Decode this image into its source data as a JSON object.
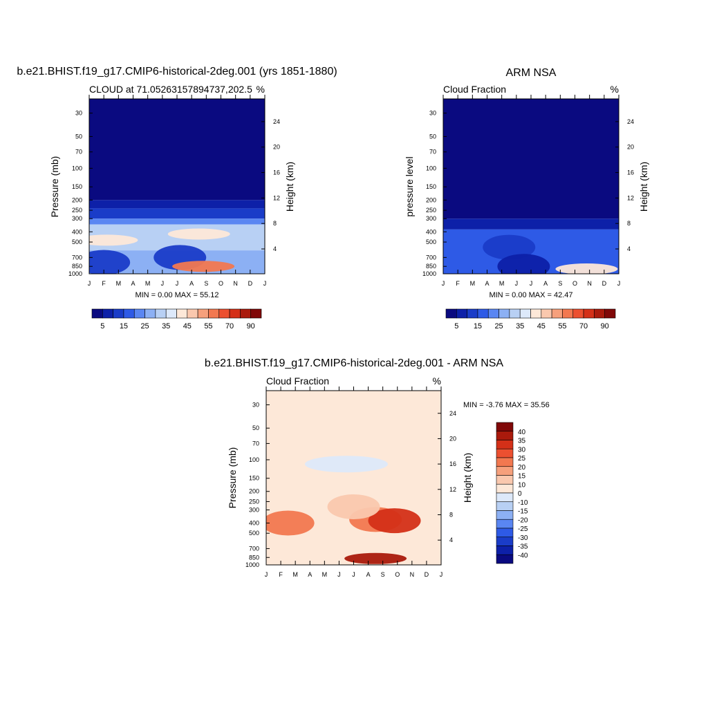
{
  "chart_data": [
    {
      "type": "contour",
      "id": "model",
      "title": "b.e21.BHIST.f19_g17.CMIP6-historical-2deg.001 (yrs 1851-1880)",
      "left_label": "CLOUD at 71.05263157894737,202.5",
      "right_label": "%",
      "xlabel": "",
      "ylabel": "Pressure (mb)",
      "y2label": "Height (km)",
      "x_ticks": [
        "J",
        "F",
        "M",
        "A",
        "M",
        "J",
        "J",
        "A",
        "S",
        "O",
        "N",
        "D",
        "J"
      ],
      "y_ticks": [
        "30",
        "50",
        "70",
        "100",
        "150",
        "200",
        "250",
        "300",
        "400",
        "500",
        "700",
        "850",
        "1000"
      ],
      "y_tick_values": [
        30,
        50,
        70,
        100,
        150,
        200,
        250,
        300,
        400,
        500,
        700,
        850,
        1000
      ],
      "height_ticks": [
        "24",
        "20",
        "16",
        "12",
        "8",
        "4"
      ],
      "height_tick_values": [
        24,
        20,
        16,
        12,
        8,
        4
      ],
      "ylim": [
        1000,
        22
      ],
      "stats": "MIN =   0.00 MAX =  55.12",
      "bands_top_to_bottom": [
        {
          "from_hPa": 22,
          "to_hPa": 200,
          "value": 2
        },
        {
          "from_hPa": 200,
          "to_hPa": 240,
          "value": 7
        },
        {
          "from_hPa": 240,
          "to_hPa": 300,
          "value": 12
        },
        {
          "from_hPa": 300,
          "to_hPa": 340,
          "value": 22
        },
        {
          "from_hPa": 340,
          "to_hPa": 600,
          "value": 32
        },
        {
          "from_hPa": 600,
          "to_hPa": 1000,
          "value": 27
        }
      ],
      "features": [
        {
          "month": 1.2,
          "hPa": 480,
          "value": 40
        },
        {
          "month": 7.5,
          "hPa": 420,
          "value": 40
        },
        {
          "month": 6.2,
          "hPa": 700,
          "value": 12
        },
        {
          "month": 1.0,
          "hPa": 780,
          "value": 12
        },
        {
          "month": 7.8,
          "hPa": 850,
          "value": 55
        }
      ]
    },
    {
      "type": "contour",
      "id": "obs",
      "title": "ARM NSA",
      "left_label": "Cloud Fraction",
      "right_label": "%",
      "ylabel": "pressure level",
      "y2label": "Height (km)",
      "x_ticks": [
        "J",
        "F",
        "M",
        "A",
        "M",
        "J",
        "J",
        "A",
        "S",
        "O",
        "N",
        "D",
        "J"
      ],
      "y_ticks": [
        "30",
        "50",
        "70",
        "100",
        "150",
        "200",
        "250",
        "300",
        "400",
        "500",
        "700",
        "850",
        "1000"
      ],
      "y_tick_values": [
        30,
        50,
        70,
        100,
        150,
        200,
        250,
        300,
        400,
        500,
        700,
        850,
        1000
      ],
      "height_ticks": [
        "24",
        "20",
        "16",
        "12",
        "8",
        "4"
      ],
      "height_tick_values": [
        24,
        20,
        16,
        12,
        8,
        4
      ],
      "ylim": [
        1000,
        22
      ],
      "stats": "MIN =   0.00 MAX =  42.47",
      "bands_top_to_bottom": [
        {
          "from_hPa": 22,
          "to_hPa": 300,
          "value": 2
        },
        {
          "from_hPa": 300,
          "to_hPa": 380,
          "value": 7
        },
        {
          "from_hPa": 380,
          "to_hPa": 1000,
          "value": 17
        }
      ],
      "features": [
        {
          "month": 4.5,
          "hPa": 560,
          "value": 12
        },
        {
          "month": 9.8,
          "hPa": 900,
          "value": 40
        },
        {
          "month": 5.5,
          "hPa": 850,
          "value": 7
        }
      ]
    },
    {
      "type": "contour",
      "id": "diff",
      "title": "b.e21.BHIST.f19_g17.CMIP6-historical-2deg.001 - ARM NSA",
      "left_label": "Cloud Fraction",
      "right_label": "%",
      "ylabel": "Pressure (mb)",
      "y2label": "Height (km)",
      "x_ticks": [
        "J",
        "F",
        "M",
        "A",
        "M",
        "J",
        "J",
        "A",
        "S",
        "O",
        "N",
        "D",
        "J"
      ],
      "y_ticks": [
        "30",
        "50",
        "70",
        "100",
        "150",
        "200",
        "250",
        "300",
        "400",
        "500",
        "700",
        "850",
        "1000"
      ],
      "y_tick_values": [
        30,
        50,
        70,
        100,
        150,
        200,
        250,
        300,
        400,
        500,
        700,
        850,
        1000
      ],
      "height_ticks": [
        "24",
        "20",
        "16",
        "12",
        "8",
        "4"
      ],
      "height_tick_values": [
        24,
        20,
        16,
        12,
        8,
        4
      ],
      "ylim": [
        1000,
        22
      ],
      "stats": "MIN =  -3.76 MAX =  35.56",
      "base_value": 2,
      "features": [
        {
          "month": 1.5,
          "hPa": 400,
          "value": 22
        },
        {
          "month": 7.5,
          "hPa": 370,
          "value": 22
        },
        {
          "month": 8.8,
          "hPa": 380,
          "value": 30
        },
        {
          "month": 6.0,
          "hPa": 280,
          "value": 12
        },
        {
          "month": 7.5,
          "hPa": 870,
          "value": 35
        },
        {
          "month": 5.5,
          "hPa": 110,
          "value": -3
        }
      ]
    }
  ],
  "colorbar_seq": {
    "colors": [
      "#0a0a80",
      "#0d20a8",
      "#1a3cc8",
      "#2e5ae6",
      "#5a86f2",
      "#8cb0f4",
      "#b8d0f4",
      "#dde9fa",
      "#fde8d8",
      "#fac8ae",
      "#f6a07c",
      "#f27850",
      "#ec5030",
      "#d43018",
      "#aa1a0c",
      "#800808"
    ],
    "labels": [
      "5",
      "15",
      "25",
      "35",
      "45",
      "55",
      "70",
      "90"
    ]
  },
  "colorbar_diff": {
    "colors": [
      "#0a0a80",
      "#0d20a8",
      "#1a3cc8",
      "#2e5ae6",
      "#5a86f2",
      "#8cb0f4",
      "#b8d0f4",
      "#dde9fa",
      "#fde8d8",
      "#fac8ae",
      "#f6a07c",
      "#f27850",
      "#ec5030",
      "#d43018",
      "#aa1a0c",
      "#800808"
    ],
    "labels": [
      "40",
      "35",
      "30",
      "25",
      "20",
      "15",
      "10",
      "0",
      "-10",
      "-15",
      "-20",
      "-25",
      "-30",
      "-35",
      "-40"
    ]
  }
}
